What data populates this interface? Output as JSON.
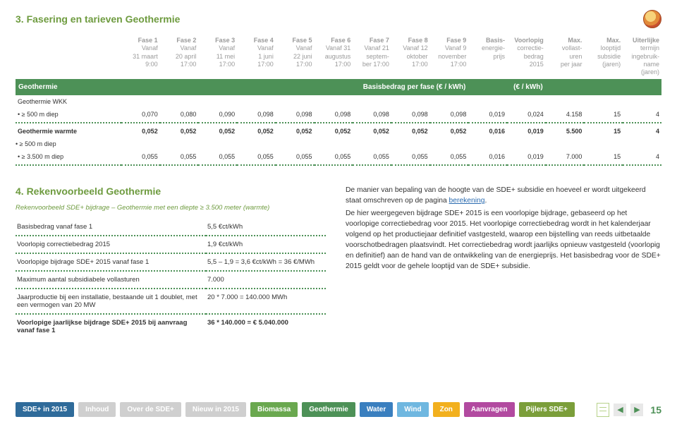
{
  "section3": {
    "title": "3. Fasering en tarieven Geothermie",
    "columns": [
      {
        "t": "Fase 1",
        "l1": "Vanaf",
        "l2": "31 maart",
        "l3": "9:00"
      },
      {
        "t": "Fase 2",
        "l1": "Vanaf",
        "l2": "20 april",
        "l3": "17:00"
      },
      {
        "t": "Fase 3",
        "l1": "Vanaf",
        "l2": "11 mei",
        "l3": "17:00"
      },
      {
        "t": "Fase 4",
        "l1": "Vanaf",
        "l2": "1 juni",
        "l3": "17:00"
      },
      {
        "t": "Fase 5",
        "l1": "Vanaf",
        "l2": "22 juni",
        "l3": "17:00"
      },
      {
        "t": "Fase 6",
        "l1": "Vanaf 31",
        "l2": "augustus",
        "l3": "17:00"
      },
      {
        "t": "Fase 7",
        "l1": "Vanaf 21",
        "l2": "septem-",
        "l3": "ber 17:00"
      },
      {
        "t": "Fase 8",
        "l1": "Vanaf 12",
        "l2": "oktober",
        "l3": "17:00"
      },
      {
        "t": "Fase 9",
        "l1": "Vanaf 9",
        "l2": "november",
        "l3": "17:00"
      },
      {
        "t": "Basis-",
        "l1": "energie-",
        "l2": "prijs",
        "l3": ""
      },
      {
        "t": "Voorlopig",
        "l1": "correctie-",
        "l2": "bedrag",
        "l3": "2015"
      },
      {
        "t": "Max.",
        "l1": "vollast-",
        "l2": "uren",
        "l3": "per jaar"
      },
      {
        "t": "Max.",
        "l1": "looptijd",
        "l2": "subsidie",
        "l3": "(jaren)"
      },
      {
        "t": "Uiterlijke",
        "l1": "termijn",
        "l2": "ingebruik-",
        "l3": "name (jaren)"
      }
    ],
    "band": {
      "left": "Geothermie",
      "mid": "Basisbedrag per fase (€ / kWh)",
      "right": "(€ / kWh)"
    },
    "group1": {
      "head": "Geothermie WKK",
      "sub": "• ≥ 500 m diep",
      "vals": [
        "0,070",
        "0,080",
        "0,090",
        "0,098",
        "0,098",
        "0,098",
        "0,098",
        "0,098",
        "0,098",
        "0,019",
        "0,024",
        "4.158",
        "15",
        "4"
      ]
    },
    "group2": {
      "head": "Geothermie warmte",
      "rows": [
        {
          "label": "• ≥ 500 m diep",
          "vals": [
            "0,052",
            "0,052",
            "0,052",
            "0,052",
            "0,052",
            "0,052",
            "0,052",
            "0,052",
            "0,052",
            "0,016",
            "0,019",
            "5.500",
            "15",
            "4"
          ]
        },
        {
          "label": "• ≥ 3.500 m diep",
          "vals": [
            "0,055",
            "0,055",
            "0,055",
            "0,055",
            "0,055",
            "0,055",
            "0,055",
            "0,055",
            "0,055",
            "0,016",
            "0,019",
            "7.000",
            "15",
            "4"
          ]
        }
      ]
    }
  },
  "section4": {
    "title": "4. Rekenvoorbeeld Geothermie",
    "subtitle": "Rekenvoorbeeld SDE+ bijdrage – Geothermie met een diepte ≥ 3.500 meter (warmte)",
    "rows": [
      {
        "l": "Basisbedrag vanaf fase 1",
        "r": "5,5 €ct/kWh"
      },
      {
        "l": "Voorlopig correctiebedrag 2015",
        "r": "1,9 €ct/kWh"
      },
      {
        "l": "Voorlopige bijdrage SDE+ 2015 vanaf fase 1",
        "r": "5,5 – 1,9 = 3,6 €ct/kWh = 36 €/MWh"
      },
      {
        "l": "Maximum aantal subsidiabele vollasturen",
        "r": "7.000"
      },
      {
        "l": "Jaarproductie bij een installatie, bestaande uit 1 doublet, met een vermogen van 20 MW",
        "r": "20 * 7.000 = 140.000 MWh"
      },
      {
        "l": "Voorlopige jaarlijkse bijdrage SDE+ 2015 bij aanvraag vanaf fase 1",
        "r": "36 * 140.000 = € 5.040.000",
        "bold": true
      }
    ],
    "para1a": "De manier van bepaling van de hoogte van de SDE+ subsidie en hoeveel er wordt uitgekeerd staat omschreven op de pagina ",
    "para1link": "berekening",
    "para1b": ".",
    "para2": "De hier weergegeven bijdrage SDE+ 2015 is een voorlopige bijdrage, gebaseerd op het voorlopige correctiebedrag voor 2015. Het voorlopige correctiebedrag wordt in het kalenderjaar volgend op het productiejaar definitief vastgesteld, waarop een bijstelling van reeds uitbetaalde voorschotbedragen plaatsvindt. Het correctiebedrag wordt jaarlijks opnieuw vastgesteld (voorlopig en definitief) aan de hand van de ontwikkeling van de energieprijs. Het basisbedrag voor de SDE+ 2015 geldt voor de gehele looptijd van de SDE+ subsidie."
  },
  "nav": {
    "items": [
      "SDE+ in 2015",
      "Inhoud",
      "Over de SDE+",
      "Nieuw in 2015",
      "Biomassa",
      "Geothermie",
      "Water",
      "Wind",
      "Zon",
      "Aanvragen",
      "Pijlers SDE+"
    ],
    "page": "15"
  },
  "colors": {
    "green": "#4d9157",
    "heading": "#6e9b3f"
  }
}
